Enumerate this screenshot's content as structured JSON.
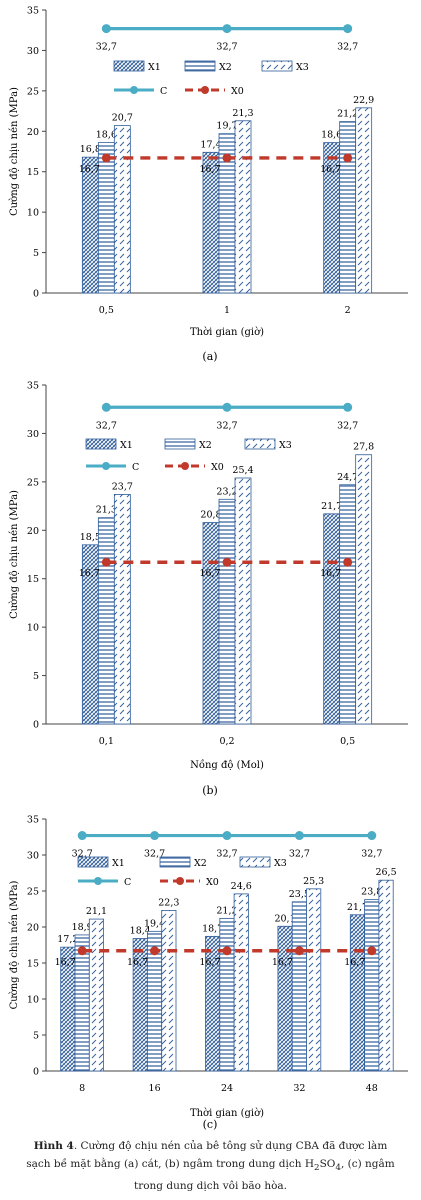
{
  "colors": {
    "bar": "#2e5c9a",
    "line_c": "#4aacc5",
    "line_x0": "#c0392b"
  },
  "chart_data": [
    {
      "type": "bar",
      "sublabel": "(a)",
      "xlabel": "Thời gian (giờ)",
      "ylabel": "Cường độ chịu nén (MPa)",
      "ylim": [
        0,
        35
      ],
      "yticks": [
        0,
        5,
        10,
        15,
        20,
        25,
        30,
        35
      ],
      "categories": [
        "0,5",
        "1",
        "2"
      ],
      "series": [
        {
          "name": "X1",
          "values": [
            16.8,
            17.4,
            18.6
          ]
        },
        {
          "name": "X2",
          "values": [
            18.6,
            19.7,
            21.2
          ]
        },
        {
          "name": "X3",
          "values": [
            20.7,
            21.3,
            22.9
          ]
        }
      ],
      "lines": [
        {
          "name": "C",
          "values": [
            32.7,
            32.7,
            32.7
          ]
        },
        {
          "name": "X0",
          "values": [
            16.7,
            16.7,
            16.7
          ]
        }
      ]
    },
    {
      "type": "bar",
      "sublabel": "(b)",
      "xlabel": "Nồng độ (Mol)",
      "ylabel": "Cường độ chịu nén (MPa)",
      "ylim": [
        0,
        35
      ],
      "yticks": [
        0,
        5,
        10,
        15,
        20,
        25,
        30,
        35
      ],
      "categories": [
        "0,1",
        "0,2",
        "0,5"
      ],
      "series": [
        {
          "name": "X1",
          "values": [
            18.5,
            20.8,
            21.7
          ]
        },
        {
          "name": "X2",
          "values": [
            21.3,
            23.2,
            24.7
          ]
        },
        {
          "name": "X3",
          "values": [
            23.7,
            25.4,
            27.8
          ]
        }
      ],
      "lines": [
        {
          "name": "C",
          "values": [
            32.7,
            32.7,
            32.7
          ]
        },
        {
          "name": "X0",
          "values": [
            16.7,
            16.7,
            16.7
          ]
        }
      ]
    },
    {
      "type": "bar",
      "sublabel": "(c)",
      "xlabel": "Thời gian (giờ)",
      "ylabel": "Cường độ chịu nén (MPa)",
      "ylim": [
        0,
        35
      ],
      "yticks": [
        0,
        5,
        10,
        15,
        20,
        25,
        30,
        35
      ],
      "categories": [
        "8",
        "16",
        "24",
        "32",
        "48"
      ],
      "series": [
        {
          "name": "X1",
          "values": [
            17.2,
            18.4,
            18.7,
            20.1,
            21.7
          ]
        },
        {
          "name": "X2",
          "values": [
            18.9,
            19.4,
            21.2,
            23.5,
            23.8
          ]
        },
        {
          "name": "X3",
          "values": [
            21.1,
            22.3,
            24.6,
            25.3,
            26.5
          ]
        }
      ],
      "lines": [
        {
          "name": "C",
          "values": [
            32.7,
            32.7,
            32.7,
            32.7,
            32.7
          ]
        },
        {
          "name": "X0",
          "values": [
            16.7,
            16.7,
            16.7,
            16.7,
            16.7
          ]
        }
      ]
    }
  ],
  "figure_caption": {
    "label": "Hình 4",
    "line1": ". Cường độ chịu nén của bê tông sử dụng CBA đã được làm",
    "line2_pre": "sạch bề mặt bằng (a) cát, (b) ngâm trong dung dịch H",
    "line2_sub1": "2",
    "line2_mid": "SO",
    "line2_sub2": "4",
    "line2_post": ", (c) ngâm",
    "line3": "trong dung dịch vôi bão hòa."
  }
}
